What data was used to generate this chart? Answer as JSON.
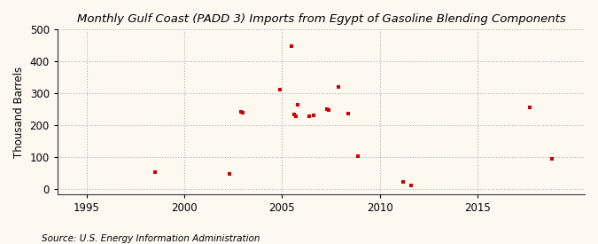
{
  "title": "Monthly Gulf Coast (PADD 3) Imports from Egypt of Gasoline Blending Components",
  "ylabel": "Thousand Barrels",
  "source": "Source: U.S. Energy Information Administration",
  "xlim": [
    1993.5,
    2020.5
  ],
  "ylim": [
    -15,
    500
  ],
  "yticks": [
    0,
    100,
    200,
    300,
    400,
    500
  ],
  "xticks": [
    1995,
    2000,
    2005,
    2010,
    2015
  ],
  "background_color": "#fef9f0",
  "marker_color": "#cc0000",
  "grid_color": "#aaaaaa",
  "nonzero_points": [
    [
      1998.5,
      55
    ],
    [
      2002.3,
      48
    ],
    [
      2002.9,
      242
    ],
    [
      2003.0,
      240
    ],
    [
      2004.9,
      312
    ],
    [
      2005.5,
      449
    ],
    [
      2005.6,
      235
    ],
    [
      2005.7,
      230
    ],
    [
      2005.8,
      265
    ],
    [
      2006.4,
      228
    ],
    [
      2006.6,
      231
    ],
    [
      2007.3,
      252
    ],
    [
      2007.4,
      248
    ],
    [
      2007.9,
      319
    ],
    [
      2008.4,
      238
    ],
    [
      2008.9,
      103
    ],
    [
      2011.2,
      22
    ],
    [
      2011.6,
      12
    ],
    [
      2017.7,
      257
    ],
    [
      2018.8,
      95
    ]
  ],
  "title_fontsize": 9.5,
  "label_fontsize": 8.5,
  "source_fontsize": 7.5
}
